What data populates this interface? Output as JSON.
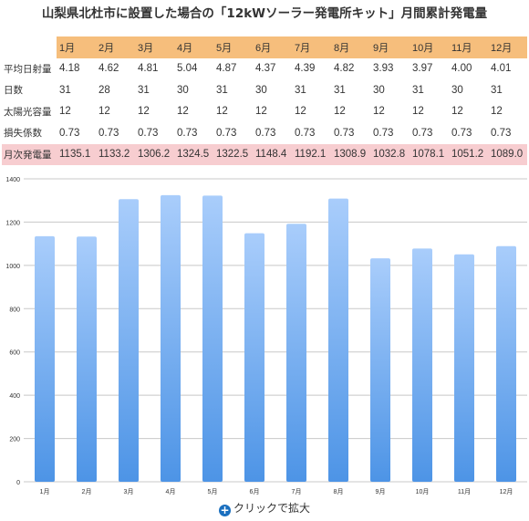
{
  "title": "山梨県北杜市に設置した場合の「12kWソーラー発電所キット」月間累計発電量",
  "table": {
    "months": [
      "1月",
      "2月",
      "3月",
      "4月",
      "5月",
      "6月",
      "7月",
      "8月",
      "9月",
      "10月",
      "11月",
      "12月"
    ],
    "rows": [
      {
        "label": "平均日射量",
        "values": [
          "4.18",
          "4.62",
          "4.81",
          "5.04",
          "4.87",
          "4.37",
          "4.39",
          "4.82",
          "3.93",
          "3.97",
          "4.00",
          "4.01"
        ]
      },
      {
        "label": "日数",
        "values": [
          "31",
          "28",
          "31",
          "30",
          "31",
          "30",
          "31",
          "31",
          "30",
          "31",
          "30",
          "31"
        ]
      },
      {
        "label": "太陽光容量",
        "values": [
          "12",
          "12",
          "12",
          "12",
          "12",
          "12",
          "12",
          "12",
          "12",
          "12",
          "12",
          "12"
        ]
      },
      {
        "label": "損失係数",
        "values": [
          "0.73",
          "0.73",
          "0.73",
          "0.73",
          "0.73",
          "0.73",
          "0.73",
          "0.73",
          "0.73",
          "0.73",
          "0.73",
          "0.73"
        ]
      },
      {
        "label": "月次発電量",
        "values": [
          "1135.1",
          "1133.2",
          "1306.2",
          "1324.5",
          "1322.5",
          "1148.4",
          "1192.1",
          "1308.9",
          "1032.8",
          "1078.1",
          "1051.2",
          "1089.0"
        ]
      }
    ]
  },
  "chart_data": {
    "type": "bar",
    "categories": [
      "1月",
      "2月",
      "3月",
      "4月",
      "5月",
      "6月",
      "7月",
      "8月",
      "9月",
      "10月",
      "11月",
      "12月"
    ],
    "values": [
      1135.1,
      1133.2,
      1306.2,
      1324.5,
      1322.5,
      1148.4,
      1192.1,
      1308.9,
      1032.8,
      1078.1,
      1051.2,
      1089.0
    ],
    "ylim": [
      0,
      1400
    ],
    "yticks": [
      0,
      200,
      400,
      600,
      800,
      1000,
      1200,
      1400
    ],
    "grid": true,
    "bar_color_top": "#a9cdfb",
    "bar_color_bottom": "#4d94e6",
    "grid_color": "#c8c8c8"
  },
  "enlarge": {
    "icon": "plus-circle-icon",
    "label": "クリックで拡大"
  }
}
